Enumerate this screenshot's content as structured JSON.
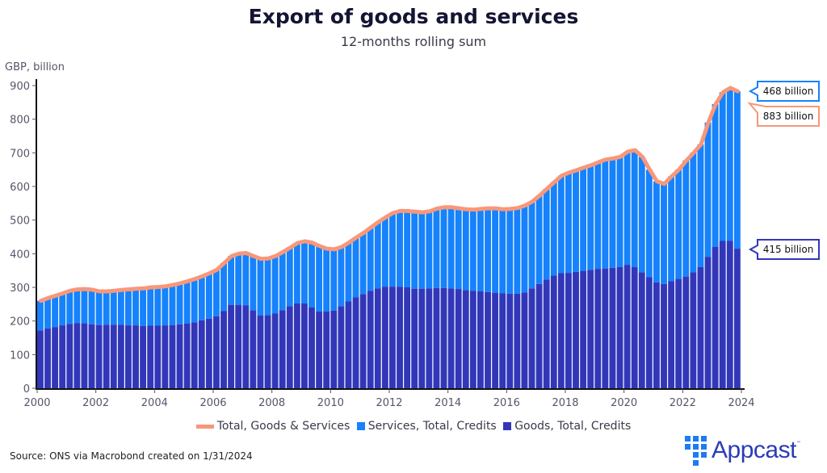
{
  "header": {
    "title": "Export of goods and services",
    "subtitle": "12-months rolling sum",
    "y_unit": "GBP, billion"
  },
  "colors": {
    "total_line": "#f8977a",
    "services": "#1682fb",
    "goods": "#3237b9",
    "axis": "#111111"
  },
  "legend": {
    "items": [
      {
        "label": "Total, Goods & Services",
        "type": "line",
        "color": "#f8977a"
      },
      {
        "label": "Services, Total, Credits",
        "type": "box",
        "color": "#1682fb"
      },
      {
        "label": "Goods, Total, Credits",
        "type": "box",
        "color": "#3237b9"
      }
    ]
  },
  "callouts": {
    "services": {
      "label": "468 billion",
      "value": 468,
      "color": "#1682fb"
    },
    "total": {
      "label": "883 billion",
      "value": 883,
      "color": "#f8977a"
    },
    "goods": {
      "label": "415 billion",
      "value": 415,
      "color": "#3237b9"
    }
  },
  "footer": {
    "source": "Source: ONS via Macrobond created on 1/31/2024",
    "logo_text": "Appcast",
    "logo_tm": "™"
  },
  "chart_data": {
    "type": "bar",
    "stacked": true,
    "title": "Export of goods and services",
    "subtitle": "12-months rolling sum",
    "xlabel": "",
    "ylabel": "GBP, billion",
    "ylim": [
      0,
      900
    ],
    "yticks": [
      0,
      100,
      200,
      300,
      400,
      500,
      600,
      700,
      800,
      900
    ],
    "xlim": [
      2000,
      2024
    ],
    "xticks": [
      2000,
      2002,
      2004,
      2006,
      2008,
      2010,
      2012,
      2014,
      2016,
      2018,
      2020,
      2022,
      2024
    ],
    "grid": false,
    "legend_position": "bottom",
    "frequency": "quarterly",
    "start": "2000Q1",
    "end": "2023Q3",
    "series": [
      {
        "name": "Goods, Total, Credits",
        "type": "bar",
        "values": [
          172,
          178,
          182,
          187,
          191,
          194,
          193,
          190,
          188,
          189,
          189,
          189,
          187,
          187,
          185,
          186,
          186,
          187,
          188,
          190,
          192,
          196,
          202,
          207,
          214,
          230,
          248,
          248,
          246,
          232,
          216,
          217,
          222,
          232,
          244,
          252,
          252,
          240,
          228,
          228,
          231,
          244,
          258,
          270,
          280,
          290,
          297,
          302,
          302,
          302,
          300,
          296,
          296,
          297,
          298,
          298,
          297,
          295,
          292,
          290,
          288,
          286,
          284,
          282,
          281,
          281,
          285,
          297,
          310,
          323,
          335,
          342,
          343,
          346,
          349,
          352,
          355,
          356,
          358,
          360,
          367,
          360,
          345,
          330,
          315,
          310,
          318,
          325,
          332,
          345,
          360,
          390,
          420,
          438,
          438,
          415
        ]
      },
      {
        "name": "Services, Total, Credits",
        "type": "bar",
        "values": [
          88,
          90,
          93,
          95,
          99,
          100,
          102,
          103,
          100,
          99,
          101,
          103,
          107,
          109,
          112,
          114,
          115,
          116,
          119,
          122,
          126,
          129,
          131,
          135,
          138,
          142,
          145,
          152,
          156,
          161,
          169,
          169,
          171,
          173,
          174,
          180,
          185,
          193,
          195,
          187,
          182,
          176,
          175,
          178,
          182,
          188,
          197,
          206,
          219,
          225,
          227,
          229,
          227,
          229,
          236,
          240,
          241,
          240,
          240,
          241,
          245,
          249,
          251,
          250,
          252,
          255,
          258,
          258,
          263,
          270,
          278,
          290,
          298,
          302,
          307,
          311,
          317,
          324,
          325,
          328,
          336,
          348,
          343,
          320,
          300,
          298,
          312,
          325,
          345,
          355,
          365,
          400,
          425,
          442,
          455,
          468
        ]
      },
      {
        "name": "Total, Goods & Services",
        "type": "line",
        "values": [
          260,
          268,
          275,
          282,
          290,
          294,
          295,
          293,
          288,
          288,
          290,
          292,
          294,
          296,
          297,
          300,
          301,
          303,
          307,
          312,
          318,
          325,
          333,
          342,
          352,
          372,
          393,
          400,
          402,
          393,
          385,
          386,
          393,
          405,
          418,
          432,
          437,
          433,
          423,
          415,
          413,
          420,
          433,
          448,
          462,
          478,
          494,
          508,
          521,
          527,
          527,
          525,
          523,
          526,
          534,
          538,
          538,
          535,
          532,
          531,
          533,
          535,
          535,
          532,
          533,
          536,
          543,
          555,
          573,
          593,
          613,
          632,
          641,
          648,
          656,
          663,
          672,
          680,
          683,
          688,
          703,
          708,
          688,
          650,
          615,
          608,
          630,
          650,
          677,
          700,
          725,
          790,
          845,
          880,
          893,
          883
        ]
      }
    ],
    "annotations": [
      "468 billion",
      "883 billion",
      "415 billion"
    ]
  }
}
